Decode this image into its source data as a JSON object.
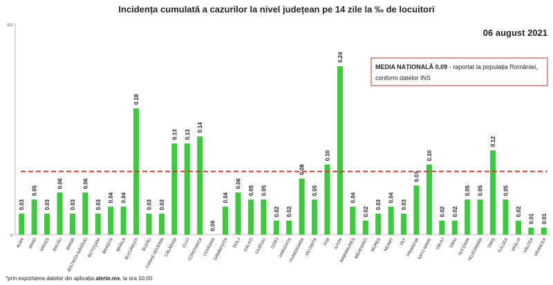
{
  "chart_data": {
    "type": "bar",
    "title": "Incidența cumulată a cazurilor la nivel județean pe 14 zile   la ‰ de locuitori",
    "subtitle": "06 august 2021",
    "categories": [
      "ALBA",
      "ARAD",
      "ARGEȘ",
      "BACĂU",
      "BIHOR",
      "BISTRIȚA-NĂSĂUD",
      "BOTOȘANI",
      "BRAȘOV",
      "BRĂILA",
      "BUCUREȘTI",
      "BUZĂU",
      "CARAȘ-SEVERIN",
      "CĂLĂRAȘI",
      "CLUJ",
      "CONSTANȚA",
      "COVASNA",
      "DÂMBOVIȚA",
      "DOLJ",
      "GALAȚI",
      "GIURGIU",
      "GORJ",
      "HARGHITA",
      "HUNEDOARA",
      "IALOMIȚA",
      "IAȘI",
      "ILFOV",
      "MARAMUREȘ",
      "MEHEDINȚI",
      "MUREȘ",
      "NEAMȚ",
      "OLT",
      "PRAHOVA",
      "SATU MARE",
      "SĂLAJ",
      "SIBIU",
      "SUCEAVA",
      "TELEORMAN",
      "TIMIȘ",
      "TULCEA",
      "VASLUI",
      "VÂLCEA",
      "VRANCEA"
    ],
    "values": [
      0.03,
      0.05,
      0.03,
      0.06,
      0.03,
      0.06,
      0.03,
      0.04,
      0.04,
      0.18,
      0.03,
      0.03,
      0.13,
      0.13,
      0.14,
      0,
      0.04,
      0.06,
      0.05,
      0.05,
      0.02,
      0.02,
      0.08,
      0.05,
      0.1,
      0.24,
      0.04,
      0.02,
      0.03,
      0.04,
      0.03,
      0.07,
      0.1,
      0.02,
      0.02,
      0.05,
      0.05,
      0.12,
      0.05,
      0.02,
      0.01,
      0.01
    ],
    "value_labels": [
      "0.03",
      "0.05",
      "0.03",
      "0.06",
      "0.03",
      "0.06",
      "0.03",
      "0.04",
      "0.04",
      "0.18",
      "0.03",
      "0.03",
      "0.13",
      "0.13",
      "0.14",
      "0.00",
      "0.04",
      "0.06",
      "0.05",
      "0.05",
      "0.02",
      "0.02",
      "0.08",
      "0.05",
      "0.10",
      "0.24",
      "0.04",
      "0.02",
      "0.03",
      "0.04",
      "0.03",
      "0.07",
      "0.10",
      "0.02",
      "0.02",
      "0.05",
      "0.05",
      "0.12",
      "0.05",
      "0.02",
      "0.01",
      "0.01"
    ],
    "color": "#3ec83e",
    "ylim": [
      0,
      0.3
    ],
    "yticks": [
      0,
      {
        "value": 0.3,
        "label": "0,3"
      }
    ],
    "reference_line": {
      "value": 0.09,
      "color": "#c0392b",
      "label": "MEDIA NAȚIONALĂ 0,09",
      "note": "- raportat la populația României, conform datelor INS"
    },
    "footnote": [
      "*prin exportarea datelor din aplicația ",
      "alerte.ms",
      ", la ora 10.00"
    ]
  }
}
